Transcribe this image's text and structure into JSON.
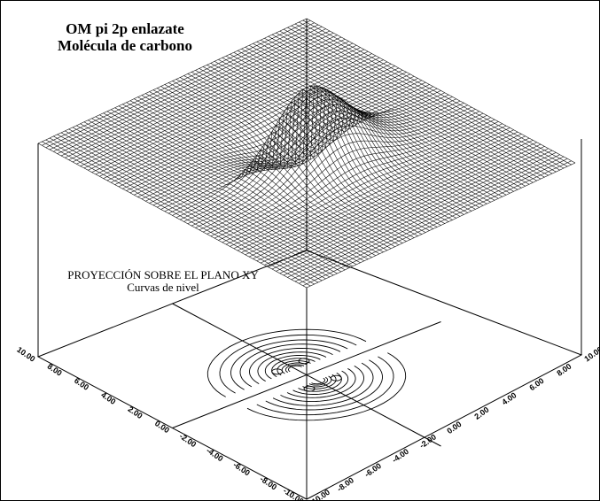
{
  "title": {
    "line1": "OM pi 2p enlazate",
    "line2": "Molécula de carbono"
  },
  "projection": {
    "line1": "PROYECCIÓN SOBRE EL PLANO XY",
    "line2": "Curvas de nivel"
  },
  "axes": {
    "left_ticks": [
      "10.00",
      "8.00",
      "6.00",
      "4.00",
      "2.00",
      "0.00",
      "-2.00",
      "-4.00",
      "-6.00",
      "-8.00",
      "-10.00"
    ],
    "bottom_ticks": [
      "-10.00",
      "-8.00",
      "-6.00",
      "-4.00",
      "-2.00",
      "0.00",
      "2.00",
      "4.00",
      "6.00",
      "8.00",
      "10.00"
    ]
  }
}
